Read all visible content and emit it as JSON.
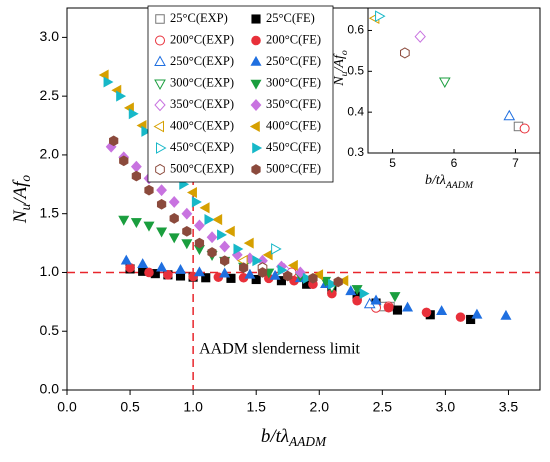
{
  "chart_data": [
    {
      "type": "scatter",
      "xlabel": [
        "b/tλ",
        "AADM"
      ],
      "ylabel": [
        "N",
        "u",
        "/Af",
        "o"
      ],
      "xlim": [
        0,
        3.75
      ],
      "ylim": [
        0,
        3.25
      ],
      "xticks": [
        {
          "value": 0,
          "label": "0.0"
        },
        {
          "value": 0.5,
          "label": "0.5"
        },
        {
          "value": 1,
          "label": "1.0"
        },
        {
          "value": 1.5,
          "label": "1.5"
        },
        {
          "value": 2,
          "label": "2.0"
        },
        {
          "value": 2.5,
          "label": "2.5"
        },
        {
          "value": 3,
          "label": "3.0"
        },
        {
          "value": 3.5,
          "label": "3.5"
        }
      ],
      "yticks": [
        {
          "value": 0,
          "label": "0.0"
        },
        {
          "value": 0.5,
          "label": "0.5"
        },
        {
          "value": 1,
          "label": "1.0"
        },
        {
          "value": 1.5,
          "label": "1.5"
        },
        {
          "value": 2,
          "label": "2.0"
        },
        {
          "value": 2.5,
          "label": "2.5"
        },
        {
          "value": 3,
          "label": "3.0"
        }
      ],
      "hline": 1,
      "vline": 1,
      "reference_color": "#e8252b",
      "annotation": "AADM  slenderness limit",
      "series": [
        {
          "name": "25°C(EXP)",
          "color": "#777777",
          "marker": "square",
          "filled": false,
          "x": [
            2.5,
            2.56
          ],
          "y": [
            0.71,
            0.71
          ]
        },
        {
          "name": "25°C(FE)",
          "color": "#000000",
          "marker": "square",
          "filled": true,
          "x": [
            0.5,
            0.6,
            0.7,
            0.8,
            0.9,
            1.0,
            1.1,
            1.3,
            1.5,
            1.7,
            1.9,
            2.1,
            2.3,
            2.45,
            2.62,
            2.88,
            3.2
          ],
          "y": [
            1.03,
            1.01,
            0.99,
            0.98,
            0.97,
            0.96,
            0.955,
            0.95,
            0.94,
            0.93,
            0.9,
            0.86,
            0.8,
            0.74,
            0.68,
            0.64,
            0.6
          ]
        },
        {
          "name": "200°C(EXP)",
          "color": "#e8303a",
          "marker": "circle",
          "filled": false,
          "x": [
            1.78,
            2.45,
            2.55
          ],
          "y": [
            1.0,
            0.7,
            0.71
          ]
        },
        {
          "name": "200°C(FE)",
          "color": "#e8303a",
          "marker": "circle",
          "filled": true,
          "x": [
            0.5,
            0.65,
            0.8,
            1.0,
            1.2,
            1.4,
            1.6,
            1.8,
            1.95,
            2.1,
            2.3,
            2.55,
            2.85,
            3.12
          ],
          "y": [
            1.04,
            1.0,
            0.98,
            0.965,
            0.96,
            0.955,
            0.95,
            0.93,
            0.9,
            0.82,
            0.76,
            0.7,
            0.66,
            0.62
          ]
        },
        {
          "name": "250°C(EXP)",
          "color": "#1f6fe0",
          "marker": "up",
          "filled": false,
          "x": [
            2.4
          ],
          "y": [
            0.73
          ]
        },
        {
          "name": "250°C(FE)",
          "color": "#1f6fe0",
          "marker": "up",
          "filled": true,
          "x": [
            0.47,
            0.6,
            0.75,
            0.9,
            1.05,
            1.25,
            1.45,
            1.65,
            1.85,
            2.05,
            2.25,
            2.45,
            2.7,
            2.97,
            3.25,
            3.48
          ],
          "y": [
            1.1,
            1.07,
            1.04,
            1.02,
            1.0,
            0.99,
            0.98,
            0.97,
            0.95,
            0.9,
            0.84,
            0.76,
            0.7,
            0.67,
            0.64,
            0.63
          ]
        },
        {
          "name": "300°C(EXP)",
          "color": "#1a9e3e",
          "marker": "down",
          "filled": false,
          "x": [
            2.1
          ],
          "y": [
            0.88
          ]
        },
        {
          "name": "300°C(FE)",
          "color": "#1a9e3e",
          "marker": "down",
          "filled": true,
          "x": [
            0.45,
            0.55,
            0.65,
            0.75,
            0.85,
            0.95,
            1.05,
            1.15,
            1.25,
            1.4,
            1.6,
            1.85,
            2.05,
            2.3,
            2.6
          ],
          "y": [
            1.45,
            1.43,
            1.4,
            1.35,
            1.3,
            1.25,
            1.2,
            1.15,
            1.1,
            1.05,
            1.0,
            0.97,
            0.93,
            0.86,
            0.8
          ]
        },
        {
          "name": "350°C(EXP)",
          "color": "#c873e0",
          "marker": "diamond",
          "filled": false,
          "x": [
            1.72
          ],
          "y": [
            1.03
          ]
        },
        {
          "name": "350°C(FE)",
          "color": "#c873e0",
          "marker": "diamond",
          "filled": true,
          "x": [
            0.35,
            0.45,
            0.55,
            0.65,
            0.75,
            0.85,
            0.95,
            1.05,
            1.15,
            1.25,
            1.35,
            1.45,
            1.55,
            1.7,
            1.85
          ],
          "y": [
            2.07,
            1.98,
            1.9,
            1.8,
            1.7,
            1.6,
            1.5,
            1.4,
            1.3,
            1.22,
            1.15,
            1.12,
            1.1,
            1.05,
            1.0
          ]
        },
        {
          "name": "400°C(EXP)",
          "color": "#d6a000",
          "marker": "left",
          "filled": false,
          "x": [
            1.4
          ],
          "y": [
            1.1
          ]
        },
        {
          "name": "400°C(FE)",
          "color": "#d6a000",
          "marker": "left",
          "filled": true,
          "x": [
            0.3,
            0.4,
            0.5,
            0.6,
            0.7,
            0.8,
            0.9,
            1.0,
            1.1,
            1.2,
            1.3,
            1.45,
            1.6,
            1.8,
            2.0,
            2.2
          ],
          "y": [
            2.68,
            2.55,
            2.4,
            2.25,
            2.1,
            1.95,
            1.8,
            1.68,
            1.55,
            1.45,
            1.35,
            1.25,
            1.15,
            1.06,
            0.98,
            0.93
          ]
        },
        {
          "name": "450°C(EXP)",
          "color": "#17b8c8",
          "marker": "right",
          "filled": false,
          "x": [
            1.65
          ],
          "y": [
            1.2
          ]
        },
        {
          "name": "450°C(FE)",
          "color": "#17b8c8",
          "marker": "right",
          "filled": true,
          "x": [
            0.32,
            0.42,
            0.52,
            0.62,
            0.72,
            0.82,
            0.92,
            1.02,
            1.12,
            1.22,
            1.35,
            1.5,
            1.7,
            1.9,
            2.1,
            2.35
          ],
          "y": [
            2.62,
            2.5,
            2.35,
            2.2,
            2.05,
            1.9,
            1.75,
            1.6,
            1.45,
            1.32,
            1.2,
            1.1,
            1.02,
            0.95,
            0.9,
            0.82
          ]
        },
        {
          "name": "500°C(EXP)",
          "color": "#8b4a3c",
          "marker": "hexagon",
          "filled": false,
          "x": [
            1.55
          ],
          "y": [
            1.04
          ]
        },
        {
          "name": "500°C(FE)",
          "color": "#8b4a3c",
          "marker": "hexagon",
          "filled": true,
          "x": [
            0.37,
            0.45,
            0.55,
            0.65,
            0.75,
            0.85,
            0.95,
            1.05,
            1.15,
            1.25,
            1.4,
            1.55,
            1.75,
            1.95,
            2.15
          ],
          "y": [
            2.12,
            1.95,
            1.82,
            1.7,
            1.58,
            1.46,
            1.35,
            1.25,
            1.17,
            1.1,
            1.04,
            1.0,
            0.97,
            0.95,
            0.92
          ]
        }
      ]
    },
    {
      "type": "scatter",
      "xlabel": [
        "b/tλ",
        "AADM"
      ],
      "ylabel": [
        "N",
        "u",
        "/Af",
        "o"
      ],
      "xlim": [
        4.6,
        7.4
      ],
      "ylim": [
        0.3,
        0.655
      ],
      "xticks": [
        5,
        6,
        7
      ],
      "yticks": [
        0.3,
        0.4,
        0.5,
        0.6
      ],
      "series": [
        {
          "color": "#777777",
          "marker": "square",
          "filled": false,
          "x": [
            7.05
          ],
          "y": [
            0.365
          ]
        },
        {
          "color": "#e8303a",
          "marker": "circle",
          "filled": false,
          "x": [
            7.15
          ],
          "y": [
            0.36
          ]
        },
        {
          "color": "#1f6fe0",
          "marker": "up",
          "filled": false,
          "x": [
            6.9
          ],
          "y": [
            0.39
          ]
        },
        {
          "color": "#1a9e3e",
          "marker": "down",
          "filled": false,
          "x": [
            5.85
          ],
          "y": [
            0.475
          ]
        },
        {
          "color": "#c873e0",
          "marker": "diamond",
          "filled": false,
          "x": [
            5.45
          ],
          "y": [
            0.585
          ]
        },
        {
          "color": "#d6a000",
          "marker": "left",
          "filled": false,
          "x": [
            4.72
          ],
          "y": [
            0.63
          ]
        },
        {
          "color": "#17b8c8",
          "marker": "right",
          "filled": false,
          "x": [
            4.78
          ],
          "y": [
            0.635
          ]
        },
        {
          "color": "#8b4a3c",
          "marker": "hexagon",
          "filled": false,
          "x": [
            5.2
          ],
          "y": [
            0.545
          ]
        }
      ]
    }
  ]
}
